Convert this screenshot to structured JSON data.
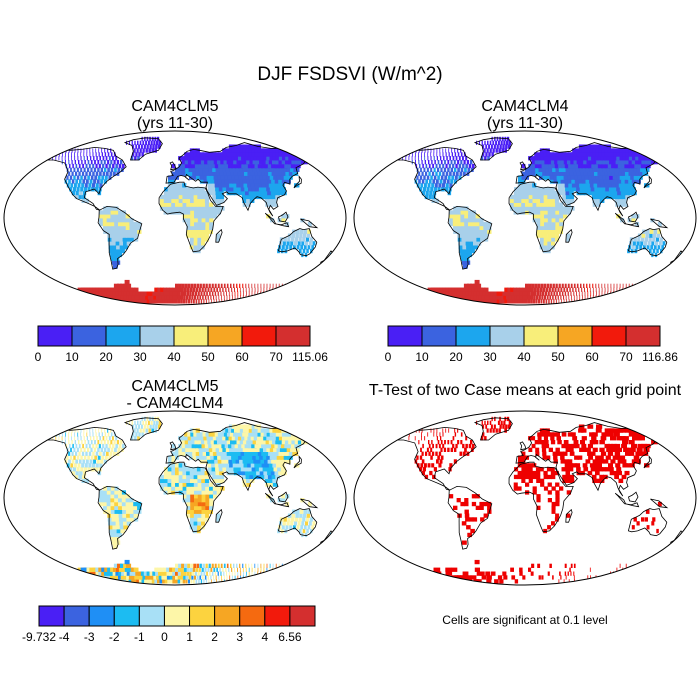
{
  "title": "DJF FSDSVI (W/m^2)",
  "panels": [
    {
      "id": "cam4clm5",
      "title_line1": "CAM4CLM5",
      "title_line2": "(yrs 11-30)",
      "colorbar": {
        "colors": [
          "#4a1ff5",
          "#3b63e0",
          "#1ca6ee",
          "#a8d0ea",
          "#f8ee7a",
          "#f6a623",
          "#f21a0c",
          "#d42f2f"
        ],
        "labels": [
          "0",
          "10",
          "20",
          "30",
          "40",
          "50",
          "60",
          "70",
          "115.06"
        ]
      }
    },
    {
      "id": "cam4clm4",
      "title_line1": "CAM4CLM4",
      "title_line2": "(yrs 11-30)",
      "colorbar": {
        "colors": [
          "#4a1ff5",
          "#3b63e0",
          "#1ca6ee",
          "#a8d0ea",
          "#f8ee7a",
          "#f6a623",
          "#f21a0c",
          "#d42f2f"
        ],
        "labels": [
          "0",
          "10",
          "20",
          "30",
          "40",
          "50",
          "60",
          "70",
          "116.86"
        ]
      }
    },
    {
      "id": "difference",
      "title_line1": "CAM4CLM5",
      "title_line2": "- CAM4CLM4",
      "colorbar": {
        "colors": [
          "#4a1ff5",
          "#3b63e0",
          "#1f8ff5",
          "#1cbcf2",
          "#a8e0f6",
          "#fdf6a8",
          "#fcd33f",
          "#f6a623",
          "#f56a10",
          "#f21a0c",
          "#d42f2f"
        ],
        "labels": [
          "-9.732",
          "-4",
          "-3",
          "-2",
          "-1",
          "0",
          "1",
          "2",
          "3",
          "4",
          "6.56"
        ]
      }
    },
    {
      "id": "ttest",
      "title_line1": "T-Test of two Case means at each grid point",
      "note": "Cells are significant at 0.1 level",
      "significant_color": "#ee0000"
    }
  ]
}
